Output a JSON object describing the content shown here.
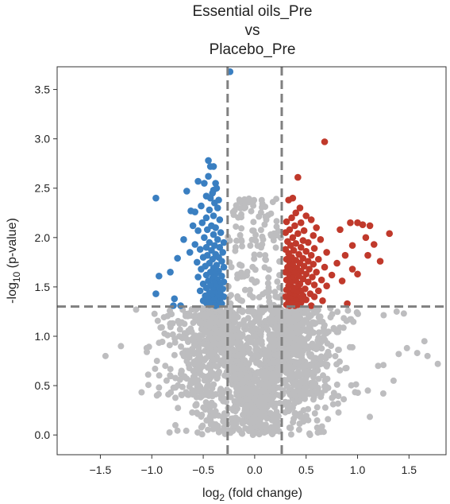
{
  "chart_data": {
    "type": "scatter",
    "title_lines": [
      "Essential oils_Pre",
      "vs",
      "Placebo_Pre"
    ],
    "xlabel": {
      "main": "log",
      "sub": "2",
      "rest": " (fold change)"
    },
    "ylabel": {
      "main": "-log",
      "sub": "10",
      "rest": " (p-value)"
    },
    "xlim": [
      -1.92,
      1.86
    ],
    "ylim": [
      -0.2,
      3.73
    ],
    "xticks": [
      -1.5,
      -1.0,
      -0.5,
      0.0,
      0.5,
      1.0,
      1.5
    ],
    "yticks": [
      0.0,
      0.5,
      1.0,
      1.5,
      2.0,
      2.5,
      3.0,
      3.5
    ],
    "thresholds": {
      "fold_change_log2": [
        -0.263,
        0.263
      ],
      "neg_log10_p": 1.301
    },
    "colors": {
      "down": "#3a7fc1",
      "up": "#c0392b",
      "ns": "#bdbdbf",
      "threshold_line": "#808080"
    },
    "series": [
      {
        "color_key": "down",
        "points": [
          [
            -0.24,
            3.68
          ],
          [
            -0.45,
            2.78
          ],
          [
            -0.43,
            2.72
          ],
          [
            -0.4,
            2.72
          ],
          [
            -0.45,
            2.62
          ],
          [
            -0.55,
            2.57
          ],
          [
            -0.49,
            2.55
          ],
          [
            -0.38,
            2.55
          ],
          [
            -0.37,
            2.5
          ],
          [
            -0.4,
            2.48
          ],
          [
            -0.66,
            2.47
          ],
          [
            -0.41,
            2.45
          ],
          [
            -0.47,
            2.42
          ],
          [
            -0.43,
            2.4
          ],
          [
            -0.96,
            2.4
          ],
          [
            -0.35,
            2.38
          ],
          [
            -0.39,
            2.35
          ],
          [
            -0.52,
            2.32
          ],
          [
            -0.36,
            2.3
          ],
          [
            -0.44,
            2.28
          ],
          [
            -0.62,
            2.27
          ],
          [
            -0.58,
            2.26
          ],
          [
            -0.4,
            2.22
          ],
          [
            -0.47,
            2.2
          ],
          [
            -0.34,
            2.18
          ],
          [
            -0.51,
            2.15
          ],
          [
            -0.42,
            2.12
          ],
          [
            -0.6,
            2.12
          ],
          [
            -0.38,
            2.1
          ],
          [
            -0.46,
            2.08
          ],
          [
            -0.55,
            2.07
          ],
          [
            -0.33,
            2.05
          ],
          [
            -0.4,
            2.03
          ],
          [
            -0.49,
            2.0
          ],
          [
            -0.69,
            1.98
          ],
          [
            -0.36,
            1.98
          ],
          [
            -0.44,
            1.95
          ],
          [
            -0.3,
            1.95
          ],
          [
            -0.58,
            1.93
          ],
          [
            -0.39,
            1.92
          ],
          [
            -0.47,
            1.9
          ],
          [
            -0.34,
            1.9
          ],
          [
            -0.53,
            1.88
          ],
          [
            -0.42,
            1.87
          ],
          [
            -0.31,
            1.85
          ],
          [
            -0.63,
            1.85
          ],
          [
            -0.38,
            1.83
          ],
          [
            -0.46,
            1.82
          ],
          [
            -0.35,
            1.8
          ],
          [
            -0.5,
            1.8
          ],
          [
            -0.75,
            1.79
          ],
          [
            -0.41,
            1.78
          ],
          [
            -0.32,
            1.76
          ],
          [
            -0.56,
            1.75
          ],
          [
            -0.44,
            1.74
          ],
          [
            -0.37,
            1.72
          ],
          [
            -0.48,
            1.71
          ],
          [
            -0.3,
            1.7
          ],
          [
            -0.4,
            1.69
          ],
          [
            -0.52,
            1.68
          ],
          [
            -0.35,
            1.66
          ],
          [
            -0.43,
            1.65
          ],
          [
            -0.82,
            1.65
          ],
          [
            -0.38,
            1.63
          ],
          [
            -0.47,
            1.62
          ],
          [
            -0.32,
            1.61
          ],
          [
            -0.55,
            1.6
          ],
          [
            -0.41,
            1.59
          ],
          [
            -0.36,
            1.57
          ],
          [
            -0.45,
            1.56
          ],
          [
            -0.93,
            1.61
          ],
          [
            -0.3,
            1.55
          ],
          [
            -0.39,
            1.54
          ],
          [
            -0.5,
            1.53
          ],
          [
            -0.34,
            1.52
          ],
          [
            -0.43,
            1.51
          ],
          [
            -0.37,
            1.5
          ],
          [
            -0.47,
            1.49
          ],
          [
            -0.31,
            1.48
          ],
          [
            -0.4,
            1.47
          ],
          [
            -0.53,
            1.46
          ],
          [
            -0.35,
            1.45
          ],
          [
            -0.44,
            1.44
          ],
          [
            -0.96,
            1.43
          ],
          [
            -0.38,
            1.43
          ],
          [
            -0.33,
            1.42
          ],
          [
            -0.48,
            1.41
          ],
          [
            -0.41,
            1.4
          ],
          [
            -0.3,
            1.4
          ],
          [
            -0.36,
            1.39
          ],
          [
            -0.45,
            1.38
          ],
          [
            -0.78,
            1.38
          ],
          [
            -0.39,
            1.37
          ],
          [
            -0.34,
            1.36
          ],
          [
            -0.5,
            1.36
          ],
          [
            -0.42,
            1.35
          ],
          [
            -0.37,
            1.34
          ],
          [
            -0.47,
            1.34
          ],
          [
            -0.32,
            1.33
          ],
          [
            -0.4,
            1.33
          ],
          [
            -0.44,
            1.32
          ],
          [
            -0.35,
            1.32
          ],
          [
            -0.79,
            1.31
          ],
          [
            -0.72,
            1.31
          ],
          [
            -0.38,
            1.31
          ]
        ]
      },
      {
        "color_key": "up",
        "points": [
          [
            0.68,
            2.97
          ],
          [
            0.42,
            2.61
          ],
          [
            0.37,
            2.4
          ],
          [
            0.33,
            2.38
          ],
          [
            0.44,
            2.3
          ],
          [
            0.4,
            2.25
          ],
          [
            0.5,
            2.22
          ],
          [
            0.36,
            2.2
          ],
          [
            0.55,
            2.18
          ],
          [
            0.31,
            2.16
          ],
          [
            0.45,
            2.15
          ],
          [
            0.93,
            2.15
          ],
          [
            1.0,
            2.15
          ],
          [
            1.05,
            2.13
          ],
          [
            1.12,
            2.12
          ],
          [
            0.39,
            2.12
          ],
          [
            0.6,
            2.1
          ],
          [
            0.34,
            2.08
          ],
          [
            0.48,
            2.07
          ],
          [
            0.83,
            2.08
          ],
          [
            1.31,
            2.04
          ],
          [
            0.3,
            2.05
          ],
          [
            0.42,
            2.04
          ],
          [
            0.57,
            2.02
          ],
          [
            0.37,
            2.0
          ],
          [
            1.08,
            2.0
          ],
          [
            0.64,
            1.98
          ],
          [
            0.47,
            1.97
          ],
          [
            0.32,
            1.96
          ],
          [
            0.52,
            1.95
          ],
          [
            0.4,
            1.94
          ],
          [
            1.16,
            1.93
          ],
          [
            0.35,
            1.92
          ],
          [
            0.45,
            1.9
          ],
          [
            0.95,
            1.92
          ],
          [
            0.58,
            1.89
          ],
          [
            0.3,
            1.88
          ],
          [
            0.38,
            1.87
          ],
          [
            0.5,
            1.86
          ],
          [
            0.7,
            1.85
          ],
          [
            0.33,
            1.84
          ],
          [
            0.43,
            1.83
          ],
          [
            0.55,
            1.82
          ],
          [
            0.88,
            1.82
          ],
          [
            1.1,
            1.82
          ],
          [
            0.36,
            1.8
          ],
          [
            0.47,
            1.79
          ],
          [
            0.31,
            1.78
          ],
          [
            0.62,
            1.78
          ],
          [
            0.4,
            1.77
          ],
          [
            0.52,
            1.76
          ],
          [
            1.22,
            1.76
          ],
          [
            0.34,
            1.75
          ],
          [
            0.44,
            1.74
          ],
          [
            0.57,
            1.73
          ],
          [
            0.8,
            1.74
          ],
          [
            0.37,
            1.72
          ],
          [
            0.48,
            1.71
          ],
          [
            0.32,
            1.7
          ],
          [
            0.68,
            1.7
          ],
          [
            0.41,
            1.69
          ],
          [
            0.53,
            1.68
          ],
          [
            0.95,
            1.68
          ],
          [
            0.35,
            1.67
          ],
          [
            0.45,
            1.66
          ],
          [
            0.3,
            1.65
          ],
          [
            0.6,
            1.65
          ],
          [
            0.39,
            1.64
          ],
          [
            0.5,
            1.63
          ],
          [
            1.0,
            1.63
          ],
          [
            0.34,
            1.62
          ],
          [
            0.43,
            1.61
          ],
          [
            0.56,
            1.6
          ],
          [
            0.75,
            1.62
          ],
          [
            0.37,
            1.59
          ],
          [
            0.47,
            1.58
          ],
          [
            0.31,
            1.57
          ],
          [
            0.65,
            1.57
          ],
          [
            0.4,
            1.56
          ],
          [
            0.52,
            1.55
          ],
          [
            0.85,
            1.56
          ],
          [
            0.35,
            1.54
          ],
          [
            0.44,
            1.53
          ],
          [
            0.58,
            1.52
          ],
          [
            0.33,
            1.51
          ],
          [
            0.42,
            1.5
          ],
          [
            0.7,
            1.51
          ],
          [
            0.38,
            1.49
          ],
          [
            0.49,
            1.48
          ],
          [
            0.31,
            1.47
          ],
          [
            0.45,
            1.46
          ],
          [
            0.62,
            1.46
          ],
          [
            0.36,
            1.45
          ],
          [
            0.41,
            1.44
          ],
          [
            0.54,
            1.43
          ],
          [
            0.34,
            1.42
          ],
          [
            0.47,
            1.41
          ],
          [
            0.39,
            1.4
          ],
          [
            0.3,
            1.4
          ],
          [
            0.58,
            1.4
          ],
          [
            0.44,
            1.39
          ],
          [
            0.35,
            1.38
          ],
          [
            0.5,
            1.37
          ],
          [
            0.4,
            1.36
          ],
          [
            0.66,
            1.36
          ],
          [
            0.33,
            1.35
          ],
          [
            0.45,
            1.34
          ],
          [
            0.37,
            1.33
          ],
          [
            0.42,
            1.32
          ],
          [
            0.31,
            1.32
          ],
          [
            0.9,
            1.33
          ],
          [
            0.55,
            1.31
          ],
          [
            0.39,
            1.31
          ],
          [
            0.34,
            1.31
          ]
        ]
      }
    ]
  }
}
